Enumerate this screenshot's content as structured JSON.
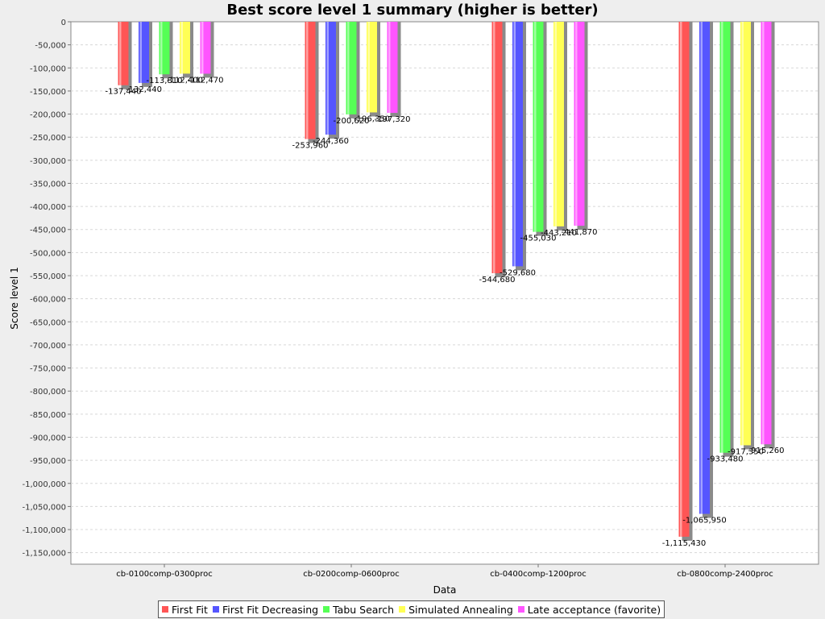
{
  "chart_data": {
    "type": "bar",
    "title": "Best score level 1 summary (higher is better)",
    "xlabel": "Data",
    "ylabel": "Score level 1",
    "ylim": [
      -1175000,
      0
    ],
    "ytick_step": 50000,
    "yticks": [
      "0",
      "-50,000",
      "-100,000",
      "-150,000",
      "-200,000",
      "-250,000",
      "-300,000",
      "-350,000",
      "-400,000",
      "-450,000",
      "-500,000",
      "-550,000",
      "-600,000",
      "-650,000",
      "-700,000",
      "-750,000",
      "-800,000",
      "-850,000",
      "-900,000",
      "-950,000",
      "-1,000,000",
      "-1,050,000",
      "-1,100,000",
      "-1,150,000"
    ],
    "grid": true,
    "legend_position": "bottom",
    "categories": [
      "cb-0100comp-0300proc",
      "cb-0200comp-0600proc",
      "cb-0400comp-1200proc",
      "cb-0800comp-2400proc"
    ],
    "series": [
      {
        "name": "First Fit",
        "color": "#ff5555",
        "values": [
          -137440,
          -253960,
          -544680,
          -1115430
        ],
        "labels": [
          "-137,440",
          "-253,960",
          "-544,680",
          "-1,115,430"
        ]
      },
      {
        "name": "First Fit Decreasing",
        "color": "#5555ff",
        "values": [
          -132440,
          -244360,
          -529680,
          -1065950
        ],
        "labels": [
          "-132,440",
          "-244,360",
          "-529,680",
          "-1,065,950"
        ]
      },
      {
        "name": "Tabu Search",
        "color": "#55ff55",
        "values": [
          -113810,
          -200620,
          -455030,
          -933480
        ],
        "labels": [
          "-113,810",
          "-200,620",
          "-455,030",
          "-933,480"
        ]
      },
      {
        "name": "Simulated Annealing",
        "color": "#ffff55",
        "values": [
          -112400,
          -196350,
          -443210,
          -917350
        ],
        "labels": [
          "-112,400",
          "-196,350",
          "-443,210",
          "-917,350"
        ]
      },
      {
        "name": "Late acceptance (favorite)",
        "color": "#ff55ff",
        "values": [
          -112470,
          -197320,
          -441870,
          -915260
        ],
        "labels": [
          "-112,470",
          "-197,320",
          "-441,870",
          "-915,260"
        ]
      }
    ]
  }
}
